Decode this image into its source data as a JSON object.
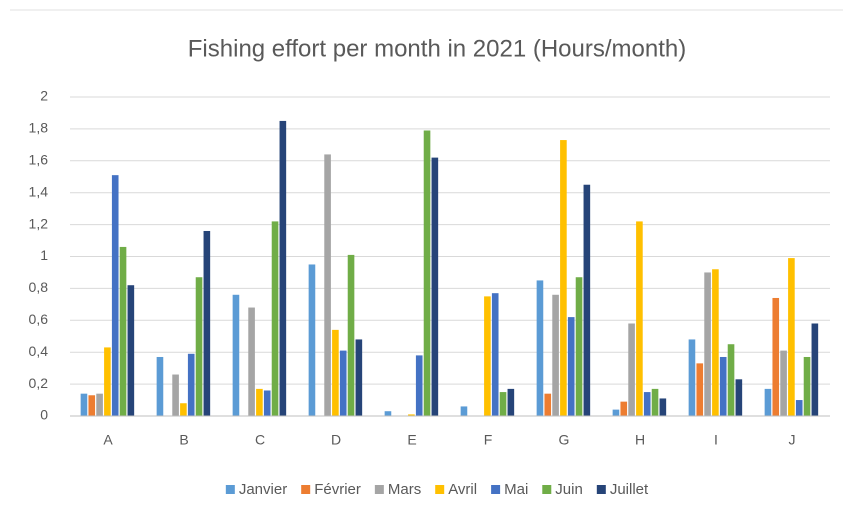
{
  "chart_data": {
    "type": "bar",
    "title": "Fishing effort per month in 2021 (Hours/month)",
    "categories": [
      "A",
      "B",
      "C",
      "D",
      "E",
      "F",
      "G",
      "H",
      "I",
      "J"
    ],
    "series": [
      {
        "name": "Janvier",
        "color": "#5b9bd5",
        "values": [
          0.14,
          0.37,
          0.76,
          0.95,
          0.03,
          0.06,
          0.85,
          0.04,
          0.48,
          0.17
        ]
      },
      {
        "name": "Février",
        "color": "#ed7d31",
        "values": [
          0.13,
          0,
          0,
          0,
          0,
          0,
          0.14,
          0.09,
          0.33,
          0.74
        ]
      },
      {
        "name": "Mars",
        "color": "#a5a5a5",
        "values": [
          0.14,
          0.26,
          0.68,
          1.64,
          0,
          0,
          0.76,
          0.58,
          0.9,
          0.41
        ]
      },
      {
        "name": "Avril",
        "color": "#ffc000",
        "values": [
          0.43,
          0.08,
          0.17,
          0.54,
          0.01,
          0.75,
          1.73,
          1.22,
          0.92,
          0.99
        ]
      },
      {
        "name": "Mai",
        "color": "#4472c4",
        "values": [
          1.51,
          0.39,
          0.16,
          0.41,
          0.38,
          0.77,
          0.62,
          0.15,
          0.37,
          0.1
        ]
      },
      {
        "name": "Juin",
        "color": "#70ad47",
        "values": [
          1.06,
          0.87,
          1.22,
          1.01,
          1.79,
          0.15,
          0.87,
          0.17,
          0.45,
          0.37
        ]
      },
      {
        "name": "Juillet",
        "color": "#264478",
        "values": [
          0.82,
          1.16,
          1.85,
          0.48,
          1.62,
          0.17,
          1.45,
          0.11,
          0.23,
          0.58
        ]
      }
    ],
    "ylim": [
      0,
      2
    ],
    "yticks": [
      0,
      {
        "value": 0.2,
        "label": "0,2"
      },
      {
        "value": 0.4,
        "label": "0,4"
      },
      {
        "value": 0.6,
        "label": "0,6"
      },
      {
        "value": 0.8,
        "label": "0,8"
      },
      1,
      {
        "value": 1.2,
        "label": "1,2"
      },
      {
        "value": 1.4,
        "label": "1,4"
      },
      {
        "value": 1.6,
        "label": "1,6"
      },
      {
        "value": 1.8,
        "label": "1,8"
      },
      2
    ],
    "grid": true,
    "legend": "bottom"
  }
}
